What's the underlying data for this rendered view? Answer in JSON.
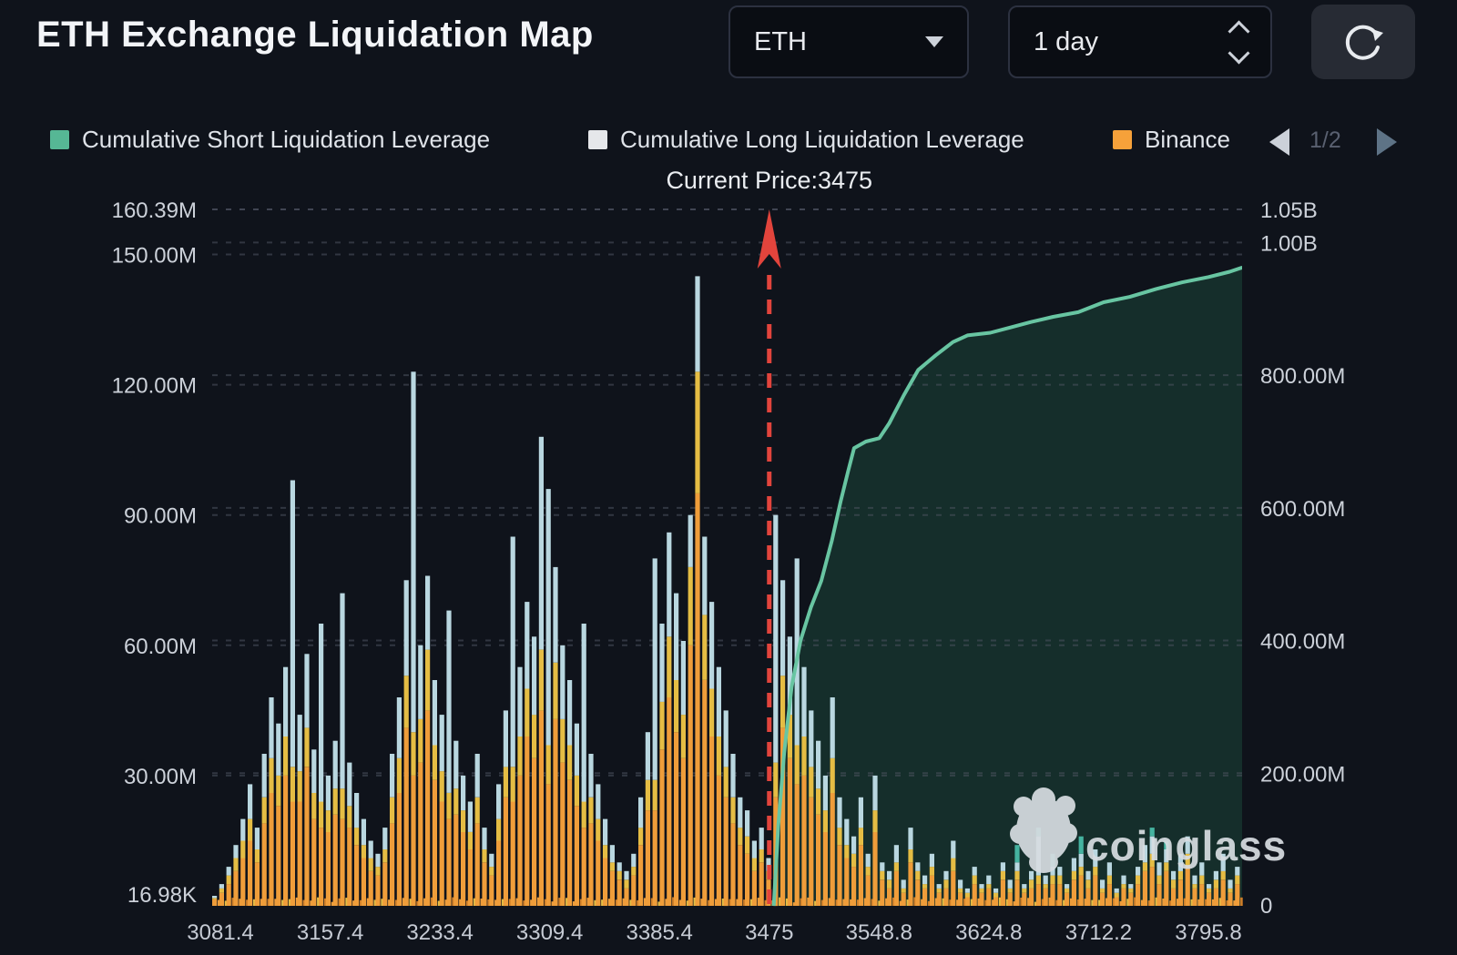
{
  "header": {
    "title": "ETH Exchange Liquidation Map",
    "symbol_select": {
      "value": "ETH"
    },
    "interval_select": {
      "value": "1 day"
    }
  },
  "legend": {
    "items": [
      {
        "label": "Cumulative Short Liquidation Leverage",
        "color": "#56b795"
      },
      {
        "label": "Cumulative Long Liquidation Leverage",
        "color": "#e5e7ea"
      },
      {
        "label": "Binance",
        "color": "#f6a13a"
      }
    ],
    "pagination": {
      "current": "1/2"
    }
  },
  "watermark": {
    "text": "coinglass"
  },
  "chart_data": {
    "type": "bar",
    "subtype": "stacked bars + cumulative line (liquidation map)",
    "annotation": "Current Price:3475",
    "current_price": 3475,
    "x_ticks": [
      3081.4,
      3157.4,
      3233.4,
      3309.4,
      3385.4,
      3475,
      3548.8,
      3624.8,
      3712.2,
      3795.8
    ],
    "x_tick_labels": [
      "3081.4",
      "3157.4",
      "3233.4",
      "3309.4",
      "3385.4",
      "3475",
      "3548.8",
      "3624.8",
      "3712.2",
      "3795.8"
    ],
    "left_axis_ticks": [
      {
        "label": "160.39M",
        "value": 160.39
      },
      {
        "label": "150.00M",
        "value": 150
      },
      {
        "label": "120.00M",
        "value": 120
      },
      {
        "label": "90.00M",
        "value": 90
      },
      {
        "label": "60.00M",
        "value": 60
      },
      {
        "label": "30.00M",
        "value": 30
      },
      {
        "label": "16.98K",
        "value": 0.017
      }
    ],
    "right_axis_ticks": [
      {
        "label": "1.05B",
        "value": 1050
      },
      {
        "label": "1.00B",
        "value": 1000
      },
      {
        "label": "800.00M",
        "value": 800
      },
      {
        "label": "600.00M",
        "value": 600
      },
      {
        "label": "400.00M",
        "value": 400
      },
      {
        "label": "200.00M",
        "value": 200
      },
      {
        "label": "0",
        "value": 0
      }
    ],
    "grid": true,
    "legend_position": "top",
    "bar_colors": [
      "#ef9d3a",
      "#e5bd44",
      "#b9d7e0",
      "#45b3a0"
    ],
    "bars_unit": "millions (left axis), stacked segments bottom-to-top",
    "bars": [
      [
        1.5,
        0.3,
        0.5
      ],
      [
        3,
        1,
        1
      ],
      [
        5,
        2,
        2
      ],
      [
        8,
        3,
        3
      ],
      [
        11,
        4,
        5
      ],
      [
        15,
        5,
        8
      ],
      [
        10,
        3,
        5
      ],
      [
        19,
        6,
        10
      ],
      [
        26,
        8,
        14
      ],
      [
        23,
        7,
        12
      ],
      [
        30,
        9,
        16
      ],
      [
        24,
        8,
        66
      ],
      [
        24,
        7,
        13
      ],
      [
        32,
        9,
        17
      ],
      [
        20,
        6,
        10
      ],
      [
        18,
        6,
        41
      ],
      [
        17,
        5,
        8
      ],
      [
        21,
        6,
        11
      ],
      [
        20,
        7,
        45
      ],
      [
        18,
        5,
        10
      ],
      [
        14,
        4,
        8
      ],
      [
        11,
        3,
        6
      ],
      [
        8,
        3,
        4
      ],
      [
        7,
        2,
        3
      ],
      [
        10,
        3,
        5
      ],
      [
        19,
        6,
        10
      ],
      [
        26,
        8,
        14
      ],
      [
        41,
        12,
        22
      ],
      [
        30,
        10,
        83
      ],
      [
        33,
        10,
        17
      ],
      [
        45,
        14,
        17
      ],
      [
        29,
        8,
        15
      ],
      [
        24,
        7,
        13
      ],
      [
        20,
        6,
        42
      ],
      [
        21,
        6,
        11
      ],
      [
        17,
        5,
        8
      ],
      [
        13,
        4,
        7
      ],
      [
        19,
        6,
        10
      ],
      [
        10,
        3,
        5
      ],
      [
        7,
        2,
        3
      ],
      [
        15,
        5,
        8
      ],
      [
        25,
        7,
        13
      ],
      [
        24,
        8,
        53
      ],
      [
        30,
        9,
        16
      ],
      [
        39,
        11,
        20
      ],
      [
        34,
        10,
        18
      ],
      [
        45,
        14,
        49
      ],
      [
        28,
        9,
        59
      ],
      [
        43,
        13,
        22
      ],
      [
        33,
        10,
        17
      ],
      [
        29,
        8,
        15
      ],
      [
        23,
        7,
        12
      ],
      [
        18,
        6,
        41
      ],
      [
        19,
        6,
        10
      ],
      [
        15,
        5,
        8
      ],
      [
        11,
        3,
        6
      ],
      [
        8,
        2,
        4
      ],
      [
        6,
        2,
        2
      ],
      [
        4,
        2,
        2
      ],
      [
        7,
        2,
        3
      ],
      [
        14,
        4,
        7
      ],
      [
        22,
        7,
        11
      ],
      [
        22,
        7,
        51
      ],
      [
        36,
        11,
        18
      ],
      [
        48,
        14,
        24
      ],
      [
        40,
        12,
        20
      ],
      [
        34,
        10,
        17
      ],
      [
        60,
        18,
        12
      ],
      [
        95,
        28,
        22
      ],
      [
        52,
        15,
        18
      ],
      [
        39,
        11,
        20
      ],
      [
        30,
        9,
        16
      ],
      [
        25,
        7,
        13
      ],
      [
        19,
        6,
        10
      ],
      [
        14,
        4,
        7
      ],
      [
        12,
        4,
        6
      ],
      [
        8,
        3,
        4
      ],
      [
        10,
        3,
        5
      ],
      [
        6,
        2,
        3
      ],
      [
        25,
        8,
        57
      ],
      [
        41,
        12,
        22
      ],
      [
        34,
        10,
        18
      ],
      [
        28,
        9,
        43
      ],
      [
        30,
        9,
        16
      ],
      [
        25,
        7,
        13
      ],
      [
        21,
        6,
        11
      ],
      [
        17,
        5,
        8
      ],
      [
        26,
        8,
        14
      ],
      [
        14,
        4,
        7
      ],
      [
        11,
        3,
        6
      ],
      [
        9,
        3,
        4
      ],
      [
        14,
        4,
        7
      ],
      [
        7,
        2,
        3
      ],
      [
        17,
        5,
        8
      ],
      [
        6,
        2,
        2
      ],
      [
        4,
        2,
        2
      ],
      [
        8,
        2,
        4
      ],
      [
        3,
        1,
        2
      ],
      [
        10,
        3,
        5
      ],
      [
        6,
        2,
        2
      ],
      [
        4,
        1,
        2
      ],
      [
        7,
        2,
        3
      ],
      [
        3,
        1,
        1
      ],
      [
        4,
        2,
        2
      ],
      [
        8,
        3,
        4
      ],
      [
        3,
        1,
        2
      ],
      [
        2,
        1,
        1
      ],
      [
        5,
        2,
        2
      ],
      [
        3,
        1,
        1
      ],
      [
        4,
        1,
        2
      ],
      [
        2,
        1,
        1
      ],
      [
        6,
        2,
        2
      ],
      [
        3,
        1,
        2
      ],
      [
        6,
        2,
        2,
        4
      ],
      [
        3,
        1,
        1
      ],
      [
        4,
        2,
        2
      ],
      [
        5,
        2,
        9,
        2
      ],
      [
        4,
        1,
        2
      ],
      [
        5,
        2,
        2,
        3
      ],
      [
        5,
        2,
        2
      ],
      [
        3,
        1,
        1
      ],
      [
        6,
        2,
        3
      ],
      [
        7,
        2,
        3,
        4
      ],
      [
        4,
        2,
        2
      ],
      [
        7,
        2,
        4
      ],
      [
        3,
        1,
        2
      ],
      [
        5,
        2,
        3
      ],
      [
        2,
        1,
        1
      ],
      [
        4,
        1,
        2
      ],
      [
        3,
        1,
        1
      ],
      [
        5,
        2,
        2
      ],
      [
        8,
        2,
        4
      ],
      [
        9,
        3,
        4,
        2
      ],
      [
        5,
        2,
        3
      ],
      [
        8,
        2,
        3,
        2
      ],
      [
        4,
        2,
        2
      ],
      [
        6,
        2,
        4
      ],
      [
        9,
        3,
        4
      ],
      [
        4,
        1,
        2
      ],
      [
        5,
        2,
        3
      ],
      [
        3,
        1,
        1
      ],
      [
        4,
        2,
        2
      ],
      [
        6,
        2,
        4
      ],
      [
        3,
        1,
        2
      ],
      [
        5,
        2,
        2
      ]
    ],
    "base_strip": {
      "present": true,
      "max_value_M": 2
    },
    "cumulative_short": {
      "name": "Cumulative Short Liquidation Leverage",
      "color": "#68c5a2",
      "fill": "#152e2b",
      "unit": "millions (right axis)",
      "points": [
        [
          3478,
          0
        ],
        [
          3481,
          120
        ],
        [
          3485,
          230
        ],
        [
          3490,
          330
        ],
        [
          3496,
          400
        ],
        [
          3503,
          450
        ],
        [
          3510,
          490
        ],
        [
          3517,
          550
        ],
        [
          3523,
          610
        ],
        [
          3528,
          655
        ],
        [
          3532,
          690
        ],
        [
          3540,
          700
        ],
        [
          3549,
          705
        ],
        [
          3556,
          728
        ],
        [
          3566,
          770
        ],
        [
          3576,
          808
        ],
        [
          3588,
          830
        ],
        [
          3600,
          850
        ],
        [
          3610,
          860
        ],
        [
          3626,
          864
        ],
        [
          3642,
          872
        ],
        [
          3658,
          880
        ],
        [
          3676,
          888
        ],
        [
          3696,
          895
        ],
        [
          3716,
          910
        ],
        [
          3736,
          918
        ],
        [
          3756,
          930
        ],
        [
          3776,
          940
        ],
        [
          3796,
          948
        ],
        [
          3812,
          956
        ],
        [
          3821,
          962
        ]
      ]
    },
    "current_price_line_color": "#e2443c"
  }
}
